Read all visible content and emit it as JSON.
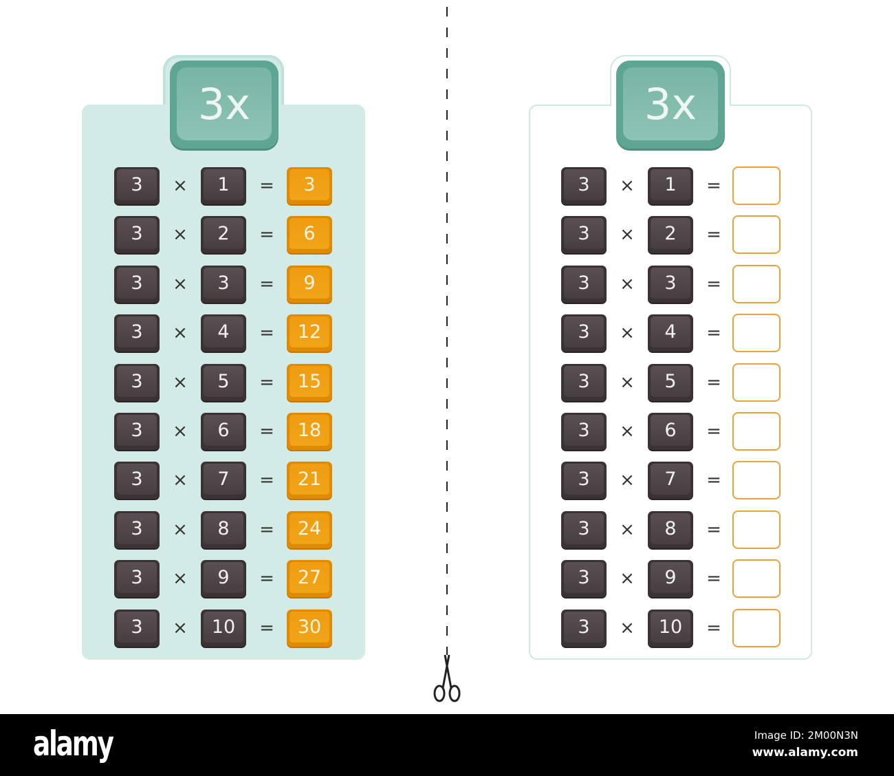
{
  "left_sheet": {
    "title": "3x",
    "multiplicand": "3",
    "times_symbol": "×",
    "equals_symbol": "=",
    "multipliers": [
      "1",
      "2",
      "3",
      "4",
      "5",
      "6",
      "7",
      "8",
      "9",
      "10"
    ],
    "answers": [
      "3",
      "6",
      "9",
      "12",
      "15",
      "18",
      "21",
      "24",
      "27",
      "30"
    ]
  },
  "right_sheet": {
    "title": "3x",
    "multiplicand": "3",
    "times_symbol": "×",
    "equals_symbol": "=",
    "multipliers": [
      "1",
      "2",
      "3",
      "4",
      "5",
      "6",
      "7",
      "8",
      "9",
      "10"
    ]
  },
  "colors": {
    "card": "#d2ebe6",
    "header": "#78b5a5",
    "key": "#473e42",
    "answer": "#f0a417",
    "answer_outline": "#e8a43a"
  },
  "cut_icon": "scissors-icon",
  "footer": {
    "logo": "alamy",
    "image_id": "Image ID: 2M00N3N",
    "url": "www.alamy.com"
  }
}
